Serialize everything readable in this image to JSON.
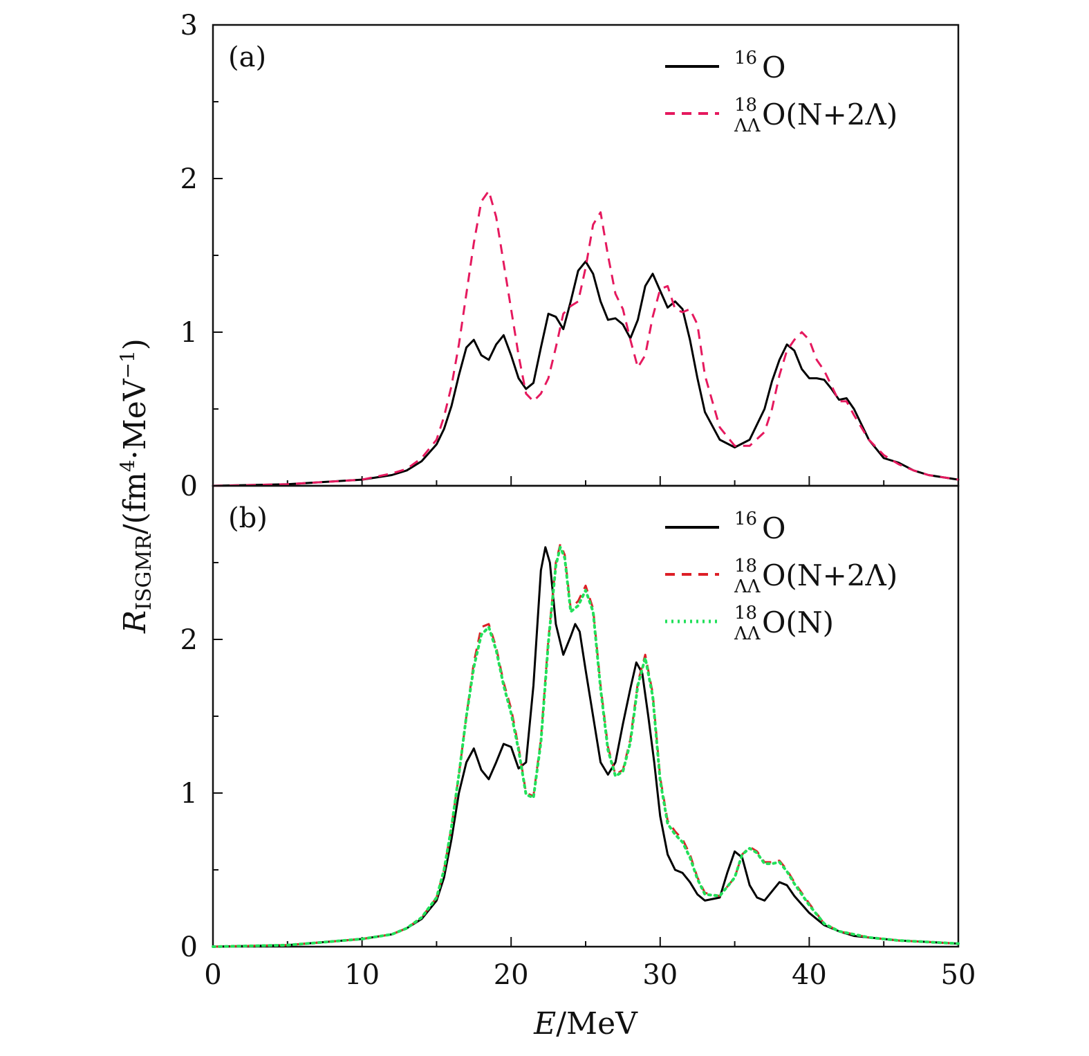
{
  "chart_data": [
    {
      "type": "line",
      "panel_label": "(a)",
      "xlim": [
        0,
        50
      ],
      "ylim": [
        0,
        3
      ],
      "y_ticks": [
        "0",
        "1",
        "2",
        "3"
      ],
      "x_ticks": [],
      "legend": {
        "placement": "top-right"
      },
      "series": [
        {
          "name_base": "O",
          "name_pre_sup": "16",
          "name_pre_sub": "",
          "name_suffix": "",
          "color": "#000000",
          "style": "solid",
          "x": [
            0,
            5,
            10,
            12,
            13,
            14,
            15,
            15.5,
            16,
            16.5,
            17,
            17.5,
            18,
            18.5,
            19,
            19.5,
            20,
            20.5,
            21,
            21.5,
            22,
            22.5,
            23,
            23.5,
            24,
            24.5,
            25,
            25.5,
            26,
            26.5,
            27,
            27.5,
            28,
            28.5,
            29,
            29.5,
            30,
            30.5,
            31,
            31.5,
            32,
            32.5,
            33,
            34,
            35,
            36,
            37,
            37.5,
            38,
            38.5,
            39,
            39.5,
            40,
            40.5,
            41,
            41.5,
            42,
            42.5,
            43,
            44,
            45,
            46,
            47,
            48,
            50
          ],
          "y": [
            0,
            0.01,
            0.04,
            0.07,
            0.1,
            0.16,
            0.27,
            0.37,
            0.52,
            0.72,
            0.9,
            0.95,
            0.85,
            0.82,
            0.92,
            0.98,
            0.85,
            0.7,
            0.63,
            0.67,
            0.9,
            1.12,
            1.1,
            1.02,
            1.2,
            1.4,
            1.46,
            1.38,
            1.2,
            1.08,
            1.09,
            1.05,
            0.96,
            1.08,
            1.3,
            1.38,
            1.27,
            1.16,
            1.2,
            1.15,
            0.95,
            0.7,
            0.48,
            0.3,
            0.25,
            0.3,
            0.5,
            0.68,
            0.82,
            0.92,
            0.88,
            0.76,
            0.7,
            0.7,
            0.69,
            0.63,
            0.56,
            0.57,
            0.5,
            0.3,
            0.18,
            0.15,
            0.1,
            0.07,
            0.04
          ]
        },
        {
          "name_base": "O(N+2Λ)",
          "name_pre_sup": "18",
          "name_pre_sub": "ΛΛ",
          "name_suffix": "",
          "color": "#e5195e",
          "style": "dashed",
          "x": [
            0,
            5,
            10,
            12,
            13,
            14,
            15,
            15.5,
            16,
            16.5,
            17,
            17.5,
            18,
            18.5,
            19,
            19.5,
            20,
            20.5,
            21,
            21.5,
            22,
            22.5,
            23,
            23.5,
            24,
            24.5,
            25,
            25.5,
            26,
            26.5,
            27,
            27.5,
            28,
            28.5,
            29,
            29.5,
            30,
            30.5,
            31,
            31.5,
            32,
            32.5,
            33,
            34,
            35,
            36,
            37,
            37.5,
            38,
            38.5,
            39,
            39.5,
            40,
            40.5,
            41,
            41.5,
            42,
            42.5,
            43,
            44,
            45,
            46,
            47,
            48,
            50
          ],
          "y": [
            0,
            0.01,
            0.04,
            0.08,
            0.11,
            0.18,
            0.3,
            0.45,
            0.65,
            0.92,
            1.25,
            1.58,
            1.85,
            1.92,
            1.75,
            1.45,
            1.15,
            0.85,
            0.6,
            0.55,
            0.6,
            0.7,
            0.9,
            1.12,
            1.17,
            1.2,
            1.42,
            1.7,
            1.78,
            1.5,
            1.25,
            1.15,
            0.95,
            0.77,
            0.85,
            1.1,
            1.28,
            1.3,
            1.15,
            1.13,
            1.15,
            1.05,
            0.72,
            0.38,
            0.26,
            0.26,
            0.35,
            0.5,
            0.72,
            0.88,
            0.95,
            1.0,
            0.95,
            0.82,
            0.75,
            0.65,
            0.55,
            0.55,
            0.46,
            0.3,
            0.2,
            0.14,
            0.1,
            0.07,
            0.04
          ]
        }
      ]
    },
    {
      "type": "line",
      "panel_label": "(b)",
      "xlim": [
        0,
        50
      ],
      "ylim": [
        0,
        3
      ],
      "y_ticks": [
        "0",
        "1",
        "2"
      ],
      "x_ticks": [
        "0",
        "10",
        "20",
        "30",
        "40",
        "50"
      ],
      "xlabel_italic": "E",
      "xlabel_rest": "/MeV",
      "ylabel_italic": "R",
      "ylabel_sub": "ISGMR",
      "ylabel_rest": "/(fm",
      "ylabel_sup": "4",
      "ylabel_end": "·MeV",
      "ylabel_sup2": "−1",
      "ylabel_close": ")",
      "legend": {
        "placement": "top-right"
      },
      "series": [
        {
          "name_base": "O",
          "name_pre_sup": "16",
          "name_pre_sub": "",
          "color": "#000000",
          "style": "solid",
          "x": [
            0,
            5,
            10,
            12,
            13,
            14,
            15,
            15.5,
            16,
            16.5,
            17,
            17.5,
            18,
            18.5,
            19,
            19.5,
            20,
            20.5,
            21,
            21.5,
            22,
            22.3,
            22.6,
            23,
            23.5,
            24,
            24.3,
            24.6,
            25,
            25.5,
            26,
            26.5,
            27,
            27.5,
            28,
            28.4,
            28.8,
            29.2,
            29.6,
            30,
            30.5,
            31,
            31.5,
            32,
            32.5,
            33,
            34,
            34.5,
            35,
            35.5,
            36,
            36.5,
            37,
            37.5,
            38,
            38.5,
            39,
            40,
            41,
            42,
            43,
            44,
            45,
            46,
            48,
            50
          ],
          "y": [
            0,
            0.01,
            0.05,
            0.08,
            0.12,
            0.18,
            0.3,
            0.45,
            0.7,
            1.0,
            1.2,
            1.29,
            1.15,
            1.09,
            1.2,
            1.32,
            1.3,
            1.16,
            1.2,
            1.7,
            2.45,
            2.6,
            2.5,
            2.1,
            1.9,
            2.02,
            2.1,
            2.05,
            1.8,
            1.5,
            1.2,
            1.12,
            1.2,
            1.45,
            1.68,
            1.85,
            1.78,
            1.5,
            1.2,
            0.85,
            0.6,
            0.5,
            0.48,
            0.42,
            0.34,
            0.3,
            0.32,
            0.48,
            0.62,
            0.58,
            0.4,
            0.32,
            0.3,
            0.36,
            0.42,
            0.4,
            0.33,
            0.22,
            0.14,
            0.1,
            0.07,
            0.06,
            0.05,
            0.04,
            0.03,
            0.02
          ]
        },
        {
          "name_base": "O(N+2Λ)",
          "name_pre_sup": "18",
          "name_pre_sub": "ΛΛ",
          "color": "#dd1f27",
          "style": "dashed",
          "x": [
            0,
            5,
            10,
            12,
            13,
            14,
            15,
            15.5,
            16,
            16.5,
            17,
            17.5,
            18,
            18.5,
            19,
            19.5,
            20,
            20.5,
            21,
            21.5,
            22,
            22.5,
            23,
            23.3,
            23.6,
            24,
            24.5,
            25,
            25.5,
            26,
            26.5,
            27,
            27.5,
            28,
            28.5,
            29,
            29.5,
            30,
            30.5,
            31,
            31.5,
            32,
            32.5,
            33,
            34,
            35,
            35.5,
            36,
            36.5,
            37,
            37.5,
            38,
            38.5,
            39,
            40,
            41,
            42,
            43,
            44,
            45,
            46,
            48,
            50
          ],
          "y": [
            0,
            0.01,
            0.05,
            0.08,
            0.12,
            0.19,
            0.32,
            0.5,
            0.78,
            1.12,
            1.5,
            1.85,
            2.08,
            2.1,
            1.95,
            1.72,
            1.55,
            1.3,
            1.0,
            0.98,
            1.35,
            2.0,
            2.5,
            2.62,
            2.55,
            2.2,
            2.25,
            2.35,
            2.2,
            1.7,
            1.3,
            1.12,
            1.15,
            1.35,
            1.72,
            1.9,
            1.65,
            1.1,
            0.82,
            0.75,
            0.7,
            0.6,
            0.45,
            0.35,
            0.33,
            0.45,
            0.6,
            0.65,
            0.62,
            0.55,
            0.55,
            0.56,
            0.5,
            0.42,
            0.28,
            0.15,
            0.1,
            0.08,
            0.06,
            0.05,
            0.04,
            0.03,
            0.02
          ]
        },
        {
          "name_base": "O(N)",
          "name_pre_sup": "18",
          "name_pre_sub": "ΛΛ",
          "color": "#22e05a",
          "style": "dotted",
          "x": [
            0,
            5,
            10,
            12,
            13,
            14,
            15,
            15.5,
            16,
            16.5,
            17,
            17.5,
            18,
            18.5,
            19,
            19.5,
            20,
            20.5,
            21,
            21.5,
            22,
            22.5,
            23,
            23.3,
            23.6,
            24,
            24.5,
            25,
            25.5,
            26,
            26.5,
            27,
            27.5,
            28,
            28.5,
            29,
            29.5,
            30,
            30.5,
            31,
            31.5,
            32,
            32.5,
            33,
            34,
            35,
            35.5,
            36,
            36.5,
            37,
            37.5,
            38,
            38.5,
            39,
            40,
            41,
            42,
            43,
            44,
            45,
            46,
            48,
            50
          ],
          "y": [
            0,
            0.01,
            0.05,
            0.08,
            0.12,
            0.19,
            0.32,
            0.5,
            0.78,
            1.12,
            1.5,
            1.82,
            2.03,
            2.08,
            1.93,
            1.7,
            1.52,
            1.28,
            0.99,
            0.97,
            1.33,
            1.98,
            2.48,
            2.6,
            2.53,
            2.18,
            2.22,
            2.32,
            2.18,
            1.68,
            1.28,
            1.11,
            1.14,
            1.33,
            1.7,
            1.88,
            1.63,
            1.08,
            0.8,
            0.73,
            0.68,
            0.58,
            0.44,
            0.34,
            0.33,
            0.45,
            0.6,
            0.64,
            0.61,
            0.54,
            0.54,
            0.55,
            0.49,
            0.41,
            0.27,
            0.15,
            0.1,
            0.08,
            0.06,
            0.05,
            0.04,
            0.03,
            0.02
          ]
        }
      ]
    }
  ]
}
